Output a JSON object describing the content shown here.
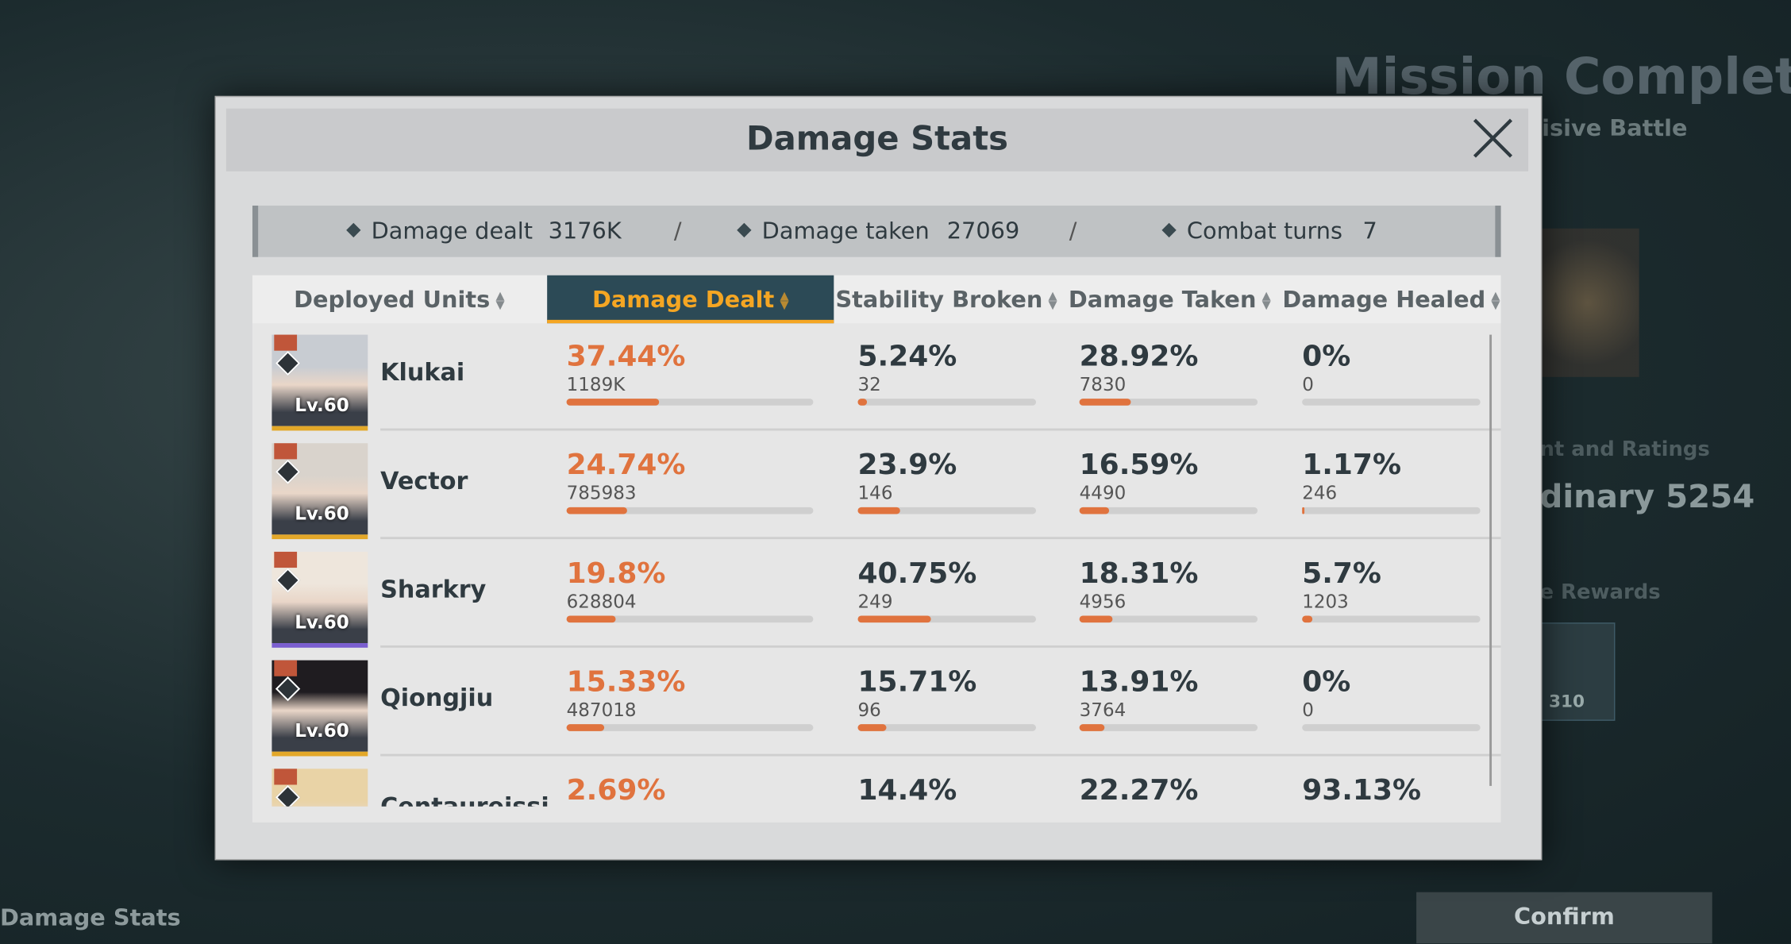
{
  "background": {
    "mission_title": "Mission Completed",
    "mission_subtitle": "cisive Battle",
    "ratings_label": "nt and Ratings",
    "rating_value": "dinary 5254",
    "rewards_label": "e Rewards",
    "reward_count": "310",
    "footer_label": "Damage Stats",
    "confirm": "Confirm"
  },
  "header": {
    "title": "Damage Stats"
  },
  "summary": [
    {
      "label": "Damage dealt",
      "value": "3176K"
    },
    {
      "label": "Damage taken",
      "value": "27069"
    },
    {
      "label": "Combat turns",
      "value": "7"
    }
  ],
  "summary_separator": "/",
  "table": {
    "columns": [
      "Deployed Units",
      "Damage Dealt",
      "Stability Broken",
      "Damage Taken",
      "Damage Healed"
    ],
    "rows": [
      {
        "name": "Klukai",
        "level": "Lv.60",
        "stats": [
          {
            "pct": 37.44,
            "pct_label": "37.44%",
            "raw": "1189K"
          },
          {
            "pct": 5.24,
            "pct_label": "5.24%",
            "raw": "32"
          },
          {
            "pct": 28.92,
            "pct_label": "28.92%",
            "raw": "7830"
          },
          {
            "pct": 0,
            "pct_label": "0%",
            "raw": "0"
          }
        ]
      },
      {
        "name": "Vector",
        "level": "Lv.60",
        "stats": [
          {
            "pct": 24.74,
            "pct_label": "24.74%",
            "raw": "785983"
          },
          {
            "pct": 23.9,
            "pct_label": "23.9%",
            "raw": "146"
          },
          {
            "pct": 16.59,
            "pct_label": "16.59%",
            "raw": "4490"
          },
          {
            "pct": 1.17,
            "pct_label": "1.17%",
            "raw": "246"
          }
        ]
      },
      {
        "name": "Sharkry",
        "level": "Lv.60",
        "stats": [
          {
            "pct": 19.8,
            "pct_label": "19.8%",
            "raw": "628804"
          },
          {
            "pct": 40.75,
            "pct_label": "40.75%",
            "raw": "249"
          },
          {
            "pct": 18.31,
            "pct_label": "18.31%",
            "raw": "4956"
          },
          {
            "pct": 5.7,
            "pct_label": "5.7%",
            "raw": "1203"
          }
        ]
      },
      {
        "name": "Qiongjiu",
        "level": "Lv.60",
        "stats": [
          {
            "pct": 15.33,
            "pct_label": "15.33%",
            "raw": "487018"
          },
          {
            "pct": 15.71,
            "pct_label": "15.71%",
            "raw": "96"
          },
          {
            "pct": 13.91,
            "pct_label": "13.91%",
            "raw": "3764"
          },
          {
            "pct": 0,
            "pct_label": "0%",
            "raw": "0"
          }
        ]
      },
      {
        "name": "Centaureissi",
        "stats": [
          {
            "pct": 2.69,
            "pct_label": "2.69%"
          },
          {
            "pct": 14.4,
            "pct_label": "14.4%"
          },
          {
            "pct": 22.27,
            "pct_label": "22.27%"
          },
          {
            "pct": 93.13,
            "pct_label": "93.13%"
          }
        ]
      }
    ]
  }
}
